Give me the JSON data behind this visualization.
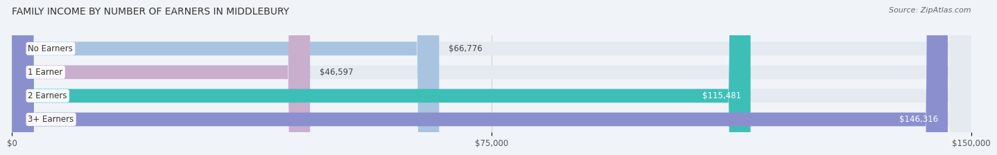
{
  "title": "FAMILY INCOME BY NUMBER OF EARNERS IN MIDDLEBURY",
  "source": "Source: ZipAtlas.com",
  "categories": [
    "No Earners",
    "1 Earner",
    "2 Earners",
    "3+ Earners"
  ],
  "values": [
    66776,
    46597,
    115481,
    146316
  ],
  "bar_colors": [
    "#a8c4e0",
    "#c9aece",
    "#3dbfb8",
    "#8b8fce"
  ],
  "bar_bg_color": "#e4eaf0",
  "background_color": "#f0f4f8",
  "value_labels": [
    "$66,776",
    "$46,597",
    "$115,481",
    "$146,316"
  ],
  "xlim": [
    0,
    150000
  ],
  "xtick_values": [
    0,
    75000,
    150000
  ],
  "xtick_labels": [
    "$0",
    "$75,000",
    "$150,000"
  ],
  "title_fontsize": 10,
  "label_fontsize": 8.5,
  "value_fontsize": 8.5,
  "source_fontsize": 8
}
